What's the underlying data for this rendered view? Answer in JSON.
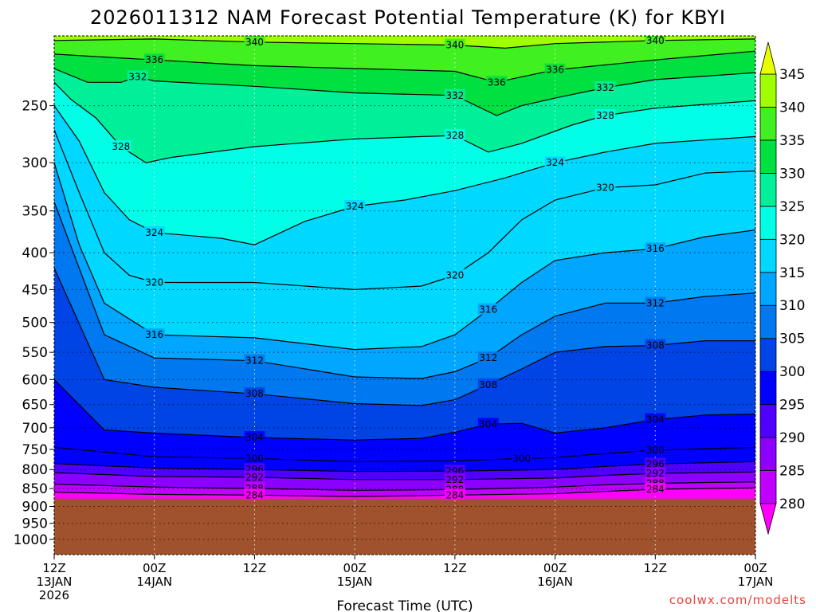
{
  "chart_data": {
    "type": "heatmap",
    "title": "2026011312 NAM Forecast Potential Temperature (K) for KBYI",
    "xlabel": "Forecast Time (UTC)",
    "ylabel": "",
    "credit": "coolwx.com/modelts",
    "y_axis": {
      "scale": "log-pressure",
      "unit": "hPa",
      "range": [
        1050,
        200
      ],
      "ticks": [
        250,
        300,
        350,
        400,
        450,
        500,
        550,
        600,
        650,
        700,
        750,
        800,
        850,
        900,
        950,
        1000
      ]
    },
    "x_axis": {
      "range_hours": [
        0,
        84
      ],
      "ticks": [
        {
          "hour": 0,
          "lines": [
            "12Z",
            "13JAN",
            "2026"
          ]
        },
        {
          "hour": 12,
          "lines": [
            "00Z",
            "14JAN"
          ]
        },
        {
          "hour": 24,
          "lines": [
            "12Z"
          ]
        },
        {
          "hour": 36,
          "lines": [
            "00Z",
            "15JAN"
          ]
        },
        {
          "hour": 48,
          "lines": [
            "12Z"
          ]
        },
        {
          "hour": 60,
          "lines": [
            "00Z",
            "16JAN"
          ]
        },
        {
          "hour": 72,
          "lines": [
            "12Z"
          ]
        },
        {
          "hour": 84,
          "lines": [
            "00Z",
            "17JAN"
          ]
        }
      ]
    },
    "colorbar": {
      "levels": [
        280,
        285,
        290,
        295,
        300,
        305,
        310,
        315,
        320,
        325,
        330,
        335,
        340,
        345
      ],
      "colors": [
        "#ff00ff",
        "#c000ff",
        "#8c00ff",
        "#5000ff",
        "#0000ff",
        "#0044e6",
        "#0078f0",
        "#00a6ff",
        "#00d8ff",
        "#00ffe6",
        "#00f09a",
        "#00e040",
        "#40f020",
        "#a0ff00",
        "#e8ff00"
      ]
    },
    "terrain": {
      "pressure_top": 878,
      "color": "#a0522d"
    },
    "contours": [
      {
        "label": "340",
        "points": [
          [
            0,
            203
          ],
          [
            12,
            202
          ],
          [
            24,
            204
          ],
          [
            36,
            205
          ],
          [
            48,
            206
          ],
          [
            54,
            208
          ],
          [
            60,
            205
          ],
          [
            72,
            203
          ],
          [
            84,
            202
          ]
        ]
      },
      {
        "label": "336",
        "points": [
          [
            0,
            212
          ],
          [
            6,
            214
          ],
          [
            12,
            216
          ],
          [
            24,
            220
          ],
          [
            36,
            222
          ],
          [
            48,
            224
          ],
          [
            53,
            232
          ],
          [
            56,
            228
          ],
          [
            60,
            223
          ],
          [
            72,
            216
          ],
          [
            84,
            210
          ]
        ]
      },
      {
        "label": "332",
        "points": [
          [
            0,
            222
          ],
          [
            4,
            232
          ],
          [
            8,
            232
          ],
          [
            10,
            228
          ],
          [
            12,
            231
          ],
          [
            24,
            235
          ],
          [
            36,
            240
          ],
          [
            48,
            242
          ],
          [
            53,
            258
          ],
          [
            56,
            250
          ],
          [
            60,
            244
          ],
          [
            66,
            236
          ],
          [
            72,
            230
          ],
          [
            84,
            225
          ]
        ]
      },
      {
        "label": "328",
        "points": [
          [
            0,
            232
          ],
          [
            2,
            245
          ],
          [
            5,
            260
          ],
          [
            8,
            285
          ],
          [
            11,
            300
          ],
          [
            14,
            295
          ],
          [
            24,
            285
          ],
          [
            36,
            278
          ],
          [
            48,
            275
          ],
          [
            52,
            290
          ],
          [
            56,
            282
          ],
          [
            62,
            266
          ],
          [
            66,
            258
          ],
          [
            72,
            252
          ],
          [
            84,
            246
          ]
        ]
      },
      {
        "label": "324",
        "points": [
          [
            0,
            250
          ],
          [
            3,
            280
          ],
          [
            6,
            330
          ],
          [
            9,
            360
          ],
          [
            12,
            375
          ],
          [
            20,
            382
          ],
          [
            24,
            390
          ],
          [
            30,
            362
          ],
          [
            36,
            345
          ],
          [
            42,
            338
          ],
          [
            48,
            328
          ],
          [
            54,
            315
          ],
          [
            60,
            300
          ],
          [
            66,
            290
          ],
          [
            72,
            282
          ],
          [
            84,
            276
          ]
        ]
      },
      {
        "label": "320",
        "points": [
          [
            0,
            270
          ],
          [
            3,
            330
          ],
          [
            6,
            400
          ],
          [
            9,
            430
          ],
          [
            12,
            440
          ],
          [
            24,
            440
          ],
          [
            36,
            450
          ],
          [
            44,
            445
          ],
          [
            48,
            430
          ],
          [
            52,
            400
          ],
          [
            56,
            360
          ],
          [
            60,
            338
          ],
          [
            66,
            325
          ],
          [
            72,
            322
          ],
          [
            78,
            310
          ],
          [
            84,
            308
          ]
        ]
      },
      {
        "label": "316",
        "points": [
          [
            0,
            300
          ],
          [
            3,
            390
          ],
          [
            6,
            470
          ],
          [
            12,
            520
          ],
          [
            24,
            525
          ],
          [
            36,
            545
          ],
          [
            44,
            540
          ],
          [
            48,
            520
          ],
          [
            52,
            480
          ],
          [
            56,
            440
          ],
          [
            60,
            410
          ],
          [
            66,
            400
          ],
          [
            72,
            395
          ],
          [
            78,
            380
          ],
          [
            84,
            372
          ]
        ]
      },
      {
        "label": "312",
        "points": [
          [
            0,
            340
          ],
          [
            6,
            520
          ],
          [
            12,
            560
          ],
          [
            24,
            565
          ],
          [
            36,
            595
          ],
          [
            44,
            598
          ],
          [
            48,
            585
          ],
          [
            52,
            560
          ],
          [
            56,
            520
          ],
          [
            60,
            490
          ],
          [
            66,
            470
          ],
          [
            72,
            470
          ],
          [
            78,
            460
          ],
          [
            84,
            455
          ]
        ]
      },
      {
        "label": "308",
        "points": [
          [
            0,
            420
          ],
          [
            6,
            600
          ],
          [
            12,
            615
          ],
          [
            24,
            628
          ],
          [
            36,
            648
          ],
          [
            44,
            652
          ],
          [
            48,
            640
          ],
          [
            52,
            610
          ],
          [
            56,
            580
          ],
          [
            60,
            550
          ],
          [
            66,
            540
          ],
          [
            72,
            538
          ],
          [
            78,
            530
          ],
          [
            84,
            530
          ]
        ]
      },
      {
        "label": "304",
        "points": [
          [
            0,
            600
          ],
          [
            6,
            705
          ],
          [
            12,
            712
          ],
          [
            24,
            722
          ],
          [
            36,
            728
          ],
          [
            44,
            724
          ],
          [
            48,
            710
          ],
          [
            52,
            692
          ],
          [
            56,
            690
          ],
          [
            60,
            712
          ],
          [
            66,
            700
          ],
          [
            72,
            682
          ],
          [
            78,
            672
          ],
          [
            84,
            670
          ]
        ]
      },
      {
        "label": "300",
        "points": [
          [
            0,
            745
          ],
          [
            12,
            768
          ],
          [
            24,
            772
          ],
          [
            36,
            780
          ],
          [
            48,
            778
          ],
          [
            56,
            772
          ],
          [
            60,
            770
          ],
          [
            66,
            760
          ],
          [
            72,
            752
          ],
          [
            84,
            745
          ]
        ]
      },
      {
        "label": "296",
        "points": [
          [
            0,
            785
          ],
          [
            12,
            796
          ],
          [
            24,
            800
          ],
          [
            36,
            805
          ],
          [
            48,
            804
          ],
          [
            60,
            800
          ],
          [
            66,
            792
          ],
          [
            72,
            786
          ],
          [
            84,
            780
          ]
        ]
      },
      {
        "label": "292",
        "points": [
          [
            0,
            808
          ],
          [
            12,
            818
          ],
          [
            24,
            820
          ],
          [
            36,
            826
          ],
          [
            48,
            826
          ],
          [
            60,
            822
          ],
          [
            66,
            815
          ],
          [
            72,
            810
          ],
          [
            84,
            806
          ]
        ]
      },
      {
        "label": "288",
        "points": [
          [
            0,
            838
          ],
          [
            12,
            846
          ],
          [
            24,
            850
          ],
          [
            36,
            855
          ],
          [
            48,
            853
          ],
          [
            60,
            846
          ],
          [
            66,
            840
          ],
          [
            72,
            836
          ],
          [
            84,
            832
          ]
        ]
      },
      {
        "label": "284",
        "points": [
          [
            0,
            860
          ],
          [
            12,
            866
          ],
          [
            24,
            868
          ],
          [
            36,
            872
          ],
          [
            48,
            868
          ],
          [
            60,
            864
          ],
          [
            66,
            858
          ],
          [
            72,
            852
          ],
          [
            84,
            848
          ]
        ]
      }
    ]
  }
}
